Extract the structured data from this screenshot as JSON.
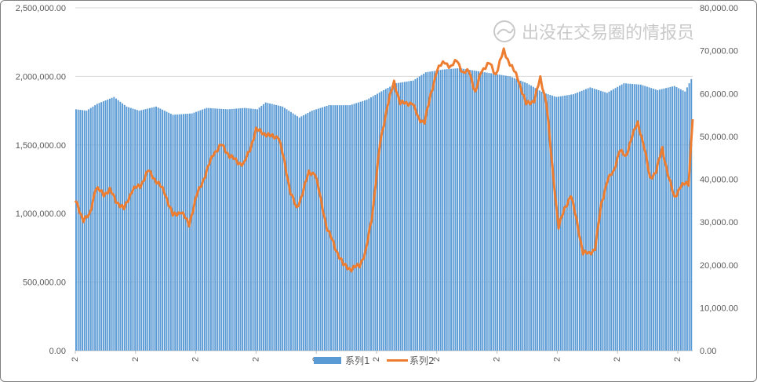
{
  "chart_data": {
    "type": "bar",
    "title": "",
    "xlabel": "",
    "ylabel": "",
    "y_left": {
      "lim": [
        0,
        2500000
      ],
      "ticks": [
        "0.00",
        "500,000.00",
        "1,000,000.00",
        "1,500,000.00",
        "2,000,000.00",
        "2,500,000.00"
      ]
    },
    "y_right": {
      "lim": [
        0,
        80000
      ],
      "ticks": [
        "0.00",
        "10,000.00",
        "20,000.00",
        "30,000.00",
        "40,000.00",
        "50,000.00",
        "60,000.00",
        "70,000.00",
        "80,000.00"
      ]
    },
    "x_tick_labels": [
      "2",
      "2",
      "2",
      "2",
      "2",
      "2",
      "2",
      "2",
      "2",
      "2",
      "2"
    ],
    "gridlines": true,
    "legend_position": "bottom-center",
    "colors": {
      "series1": "#5b9bd5",
      "series2": "#ed7d31"
    },
    "series": [
      {
        "name": "系列1",
        "type": "bar",
        "axis": "left",
        "anchors": [
          [
            0,
            1760000
          ],
          [
            5,
            1750000
          ],
          [
            10,
            1800000
          ],
          [
            18,
            1850000
          ],
          [
            24,
            1780000
          ],
          [
            30,
            1750000
          ],
          [
            38,
            1780000
          ],
          [
            46,
            1720000
          ],
          [
            55,
            1730000
          ],
          [
            62,
            1770000
          ],
          [
            72,
            1760000
          ],
          [
            80,
            1770000
          ],
          [
            86,
            1760000
          ],
          [
            90,
            1810000
          ],
          [
            98,
            1780000
          ],
          [
            106,
            1700000
          ],
          [
            112,
            1750000
          ],
          [
            120,
            1790000
          ],
          [
            130,
            1790000
          ],
          [
            138,
            1830000
          ],
          [
            146,
            1900000
          ],
          [
            152,
            1950000
          ],
          [
            160,
            1970000
          ],
          [
            166,
            2030000
          ],
          [
            174,
            2050000
          ],
          [
            182,
            2060000
          ],
          [
            190,
            2040000
          ],
          [
            198,
            2020000
          ],
          [
            206,
            2000000
          ],
          [
            214,
            1950000
          ],
          [
            222,
            1880000
          ],
          [
            228,
            1850000
          ],
          [
            236,
            1870000
          ],
          [
            244,
            1920000
          ],
          [
            252,
            1880000
          ],
          [
            260,
            1950000
          ],
          [
            268,
            1940000
          ],
          [
            276,
            1900000
          ],
          [
            284,
            1930000
          ],
          [
            289,
            1890000
          ],
          [
            292,
            1980000
          ]
        ]
      },
      {
        "name": "系列2",
        "type": "line",
        "axis": "right",
        "anchors": [
          [
            0,
            35000
          ],
          [
            4,
            30500
          ],
          [
            7,
            31500
          ],
          [
            10,
            38000
          ],
          [
            14,
            36500
          ],
          [
            17,
            37500
          ],
          [
            20,
            35000
          ],
          [
            24,
            33000
          ],
          [
            28,
            37500
          ],
          [
            32,
            38500
          ],
          [
            36,
            42000
          ],
          [
            40,
            39500
          ],
          [
            44,
            37000
          ],
          [
            48,
            31500
          ],
          [
            52,
            32500
          ],
          [
            56,
            29500
          ],
          [
            60,
            36500
          ],
          [
            64,
            41000
          ],
          [
            68,
            46000
          ],
          [
            72,
            48000
          ],
          [
            76,
            45500
          ],
          [
            80,
            44000
          ],
          [
            83,
            43500
          ],
          [
            86,
            47000
          ],
          [
            89,
            51500
          ],
          [
            92,
            51000
          ],
          [
            96,
            50000
          ],
          [
            100,
            50000
          ],
          [
            103,
            44000
          ],
          [
            106,
            37000
          ],
          [
            109,
            33000
          ],
          [
            112,
            37000
          ],
          [
            115,
            41500
          ],
          [
            118,
            41500
          ],
          [
            121,
            35000
          ],
          [
            124,
            28500
          ],
          [
            128,
            24000
          ],
          [
            132,
            20000
          ],
          [
            136,
            19000
          ],
          [
            140,
            20000
          ],
          [
            143,
            23000
          ],
          [
            146,
            31000
          ],
          [
            150,
            48000
          ],
          [
            154,
            58000
          ],
          [
            157,
            62500
          ],
          [
            160,
            58000
          ],
          [
            163,
            57500
          ],
          [
            166,
            58000
          ],
          [
            169,
            54000
          ],
          [
            172,
            53500
          ],
          [
            175,
            59500
          ],
          [
            178,
            65500
          ],
          [
            182,
            67500
          ],
          [
            185,
            66000
          ],
          [
            188,
            68000
          ],
          [
            191,
            64500
          ],
          [
            194,
            65500
          ],
          [
            197,
            60000
          ],
          [
            200,
            65500
          ],
          [
            204,
            67000
          ],
          [
            207,
            64500
          ],
          [
            211,
            70000
          ],
          [
            214,
            67000
          ],
          [
            218,
            63500
          ],
          [
            222,
            57500
          ],
          [
            226,
            58500
          ],
          [
            229,
            63500
          ],
          [
            232,
            58000
          ],
          [
            235,
            42000
          ],
          [
            238,
            29000
          ],
          [
            241,
            33000
          ],
          [
            244,
            36500
          ],
          [
            247,
            30000
          ],
          [
            250,
            23000
          ],
          [
            253,
            22500
          ],
          [
            256,
            24000
          ],
          [
            259,
            34000
          ],
          [
            262,
            40000
          ],
          [
            265,
            41500
          ],
          [
            268,
            47000
          ],
          [
            271,
            45000
          ],
          [
            274,
            50000
          ],
          [
            277,
            53000
          ],
          [
            280,
            48000
          ],
          [
            283,
            40000
          ],
          [
            286,
            42000
          ],
          [
            289,
            47000
          ],
          [
            292,
            41000
          ],
          [
            295,
            35500
          ],
          [
            298,
            38500
          ],
          [
            302,
            39000
          ],
          [
            304,
            54500
          ]
        ]
      }
    ]
  },
  "watermark": {
    "text": "出没在交易圈的情报员",
    "icon": "handshake-logo-icon"
  }
}
